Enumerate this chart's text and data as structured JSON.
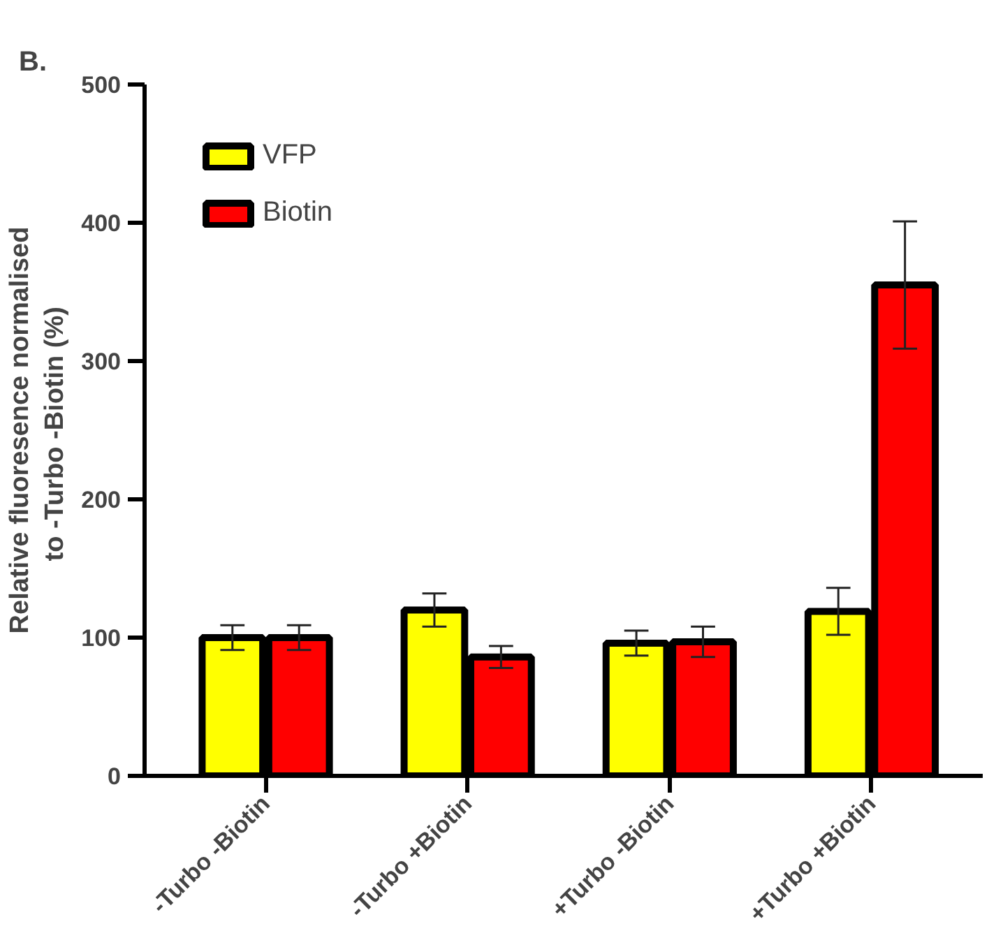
{
  "chart_data": {
    "type": "bar",
    "title": "B.",
    "ylabel": "Relative fluoresence normalised\nto -Turbo -Biotin  (%)",
    "categories": [
      "-Turbo -Biotin",
      "-Turbo +Biotin",
      "+Turbo -Biotin",
      "+Turbo +Biotin"
    ],
    "series": [
      {
        "name": "VFP",
        "color": "#ffff00",
        "values": [
          100,
          120,
          96,
          119
        ],
        "errors": [
          9,
          12,
          9,
          17
        ]
      },
      {
        "name": "Biotin",
        "color": "#ff0000",
        "values": [
          100,
          86,
          97,
          355
        ],
        "errors": [
          9,
          8,
          11,
          46
        ]
      }
    ],
    "ylim": [
      0,
      500
    ],
    "yticks": [
      0,
      100,
      200,
      300,
      400,
      500
    ],
    "grid": false,
    "legend": "top left"
  }
}
